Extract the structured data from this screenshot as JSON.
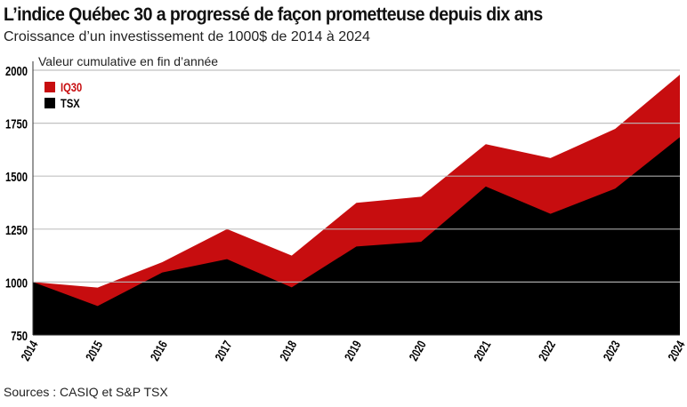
{
  "title": "L’indice Québec 30 a progressé de façon prometteuse depuis dix ans",
  "subtitle": "Croissance d’un investissement de 1000$ de 2014 à 2024",
  "sources": "Sources : CASIQ et S&P TSX",
  "chart_data": {
    "type": "area",
    "ylabel": "Valeur cumulative en fin d’année",
    "x": [
      "2014",
      "2015",
      "2016",
      "2017",
      "2018",
      "2019",
      "2020",
      "2021",
      "2022",
      "2023",
      "2024"
    ],
    "ylim": [
      750,
      2000
    ],
    "yticks": [
      750,
      1000,
      1250,
      1500,
      1750,
      2000
    ],
    "grid": true,
    "legend": "top-left",
    "series": [
      {
        "name": "IQ30",
        "color": "#c70d0f",
        "values": [
          1000,
          974,
          1094,
          1250,
          1125,
          1374,
          1403,
          1651,
          1585,
          1723,
          1979
        ]
      },
      {
        "name": "TSX",
        "color": "#000000",
        "values": [
          1000,
          887,
          1045,
          1108,
          975,
          1168,
          1190,
          1451,
          1322,
          1441,
          1684
        ]
      }
    ]
  }
}
